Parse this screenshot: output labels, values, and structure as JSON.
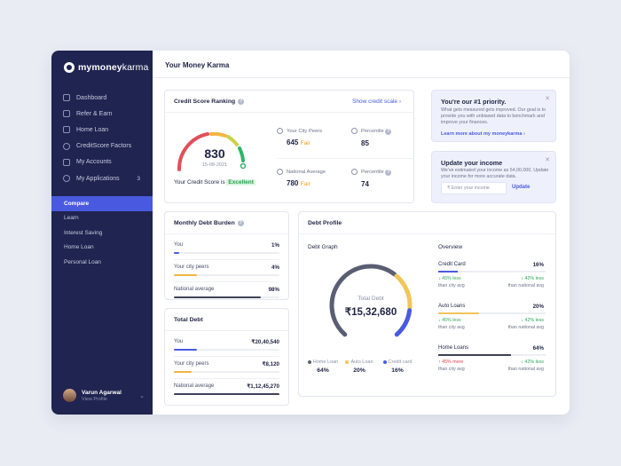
{
  "brand": {
    "name_bold": "mymoney",
    "name_regular": "karma"
  },
  "sidebar": {
    "items": [
      {
        "label": "Dashboard",
        "icon": "dashboard-icon"
      },
      {
        "label": "Refer & Earn",
        "icon": "gift-icon"
      },
      {
        "label": "Home Loan",
        "icon": "home-icon"
      },
      {
        "label": "CreditScore Factors",
        "icon": "gauge-icon"
      },
      {
        "label": "My Accounts",
        "icon": "card-icon"
      },
      {
        "label": "My Applications",
        "icon": "chat-icon",
        "badge": "3"
      }
    ],
    "sub_items": [
      "Compare",
      "Learn",
      "Interest Saving",
      "Home Loan",
      "Personal Loan"
    ],
    "active_sub": "Compare",
    "user": {
      "name": "Varun Agarwal",
      "subtitle": "View Profile"
    }
  },
  "header": {
    "title": "Your Money Karma"
  },
  "credit": {
    "title": "Credit Score Ranking",
    "link": "Show credit scale",
    "score": "830",
    "date": "15-08-2021",
    "status_prefix": "Your Credit Score is",
    "status": "Excellent",
    "gauge_level_fraction": 0.86,
    "metrics": [
      {
        "label": "Your City Peers",
        "value": "645",
        "tag": "Fair",
        "icon": "people-icon"
      },
      {
        "label": "Percentile",
        "value": "85",
        "tag": "",
        "icon": "percent-icon"
      },
      {
        "label": "National Average",
        "value": "780",
        "tag": "Fair",
        "icon": "globe-icon"
      },
      {
        "label": "Percentile",
        "value": "74",
        "tag": "",
        "icon": "percent-icon"
      }
    ]
  },
  "promo1": {
    "title": "You're our #1 priority.",
    "text": "What gets measured gets improved. Our goal is to provide you with unbiased data to benchmark and improve your finances.",
    "link": "Learn more about my moneykarma"
  },
  "promo2": {
    "title": "Update your income",
    "text": "We've estimated your income as 54,00,000. Update your income for more accurate data.",
    "placeholder": "Enter your income",
    "button": "Update"
  },
  "monthly_debt": {
    "title": "Monthly Debt Burden",
    "rows": [
      {
        "label": "You",
        "value": "1%",
        "fill": 0.05,
        "color": "#4a5ae0"
      },
      {
        "label": "Your city peers",
        "value": "4%",
        "fill": 0.22,
        "color": "#f2b544"
      },
      {
        "label": "National average",
        "value": "98%",
        "fill": 0.82,
        "color": "#3d4157"
      }
    ]
  },
  "total_debt": {
    "title": "Total Debt",
    "rows": [
      {
        "label": "You",
        "value": "₹20,40,540",
        "fill": 0.22,
        "color": "#4a5ae0"
      },
      {
        "label": "Your city peers",
        "value": "₹8,120",
        "fill": 0.17,
        "color": "#f2b544"
      },
      {
        "label": "National average",
        "value": "₹1,12,45,270",
        "fill": 1.0,
        "color": "#3d4157"
      }
    ]
  },
  "debt_profile": {
    "title": "Debt Profile",
    "graph_label": "Debt Graph",
    "overview_label": "Overview",
    "total_label": "Total Debt",
    "total_value": "₹15,32,680",
    "legend": [
      {
        "label": "Home Loan",
        "value": "64%",
        "color": "#5a5e73"
      },
      {
        "label": "Auto Loan",
        "value": "20%",
        "color": "#f2c55a"
      },
      {
        "label": "Credit card",
        "value": "16%",
        "color": "#4a5ae0"
      }
    ],
    "overview": [
      {
        "name": "Credit Card",
        "pct": "16%",
        "fill": 0.18,
        "color": "#4a5ae0",
        "left_delta": "45% less",
        "left_sub": "than city avg",
        "left_dir": "down",
        "right_delta": "42% less",
        "right_sub": "than national avg",
        "right_dir": "down"
      },
      {
        "name": "Auto Loans",
        "pct": "20%",
        "fill": 0.38,
        "color": "#f2c55a",
        "left_delta": "45% less",
        "left_sub": "than city avg",
        "left_dir": "down",
        "right_delta": "42% less",
        "right_sub": "than national avg",
        "right_dir": "down"
      },
      {
        "name": "Home Loans",
        "pct": "64%",
        "fill": 0.68,
        "color": "#3d4157",
        "left_delta": "45% more",
        "left_sub": "than city avg",
        "left_dir": "up",
        "right_delta": "42% less",
        "right_sub": "than national avg",
        "right_dir": "down"
      }
    ]
  }
}
